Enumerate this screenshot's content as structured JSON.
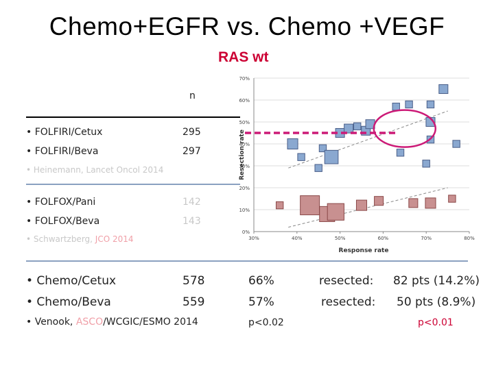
{
  "title": "Chemo+EGFR vs. Chemo +VEGF",
  "subtitle": "RAS wt",
  "table": {
    "n_header": "n",
    "group1": [
      {
        "label": "• FOLFIRI/Cetux",
        "n": "295"
      },
      {
        "label": "• FOLFIRI/Beva",
        "n": "297"
      }
    ],
    "citation1": "• Heinemann, Lancet Oncol 2014",
    "group2": [
      {
        "label": "• FOLFOX/Pani",
        "n": "142"
      },
      {
        "label": "• FOLFOX/Beva",
        "n": "143"
      }
    ],
    "citation2_prefix": "• Schwartzberg, ",
    "citation2_suffix": "JCO 2014",
    "group3": [
      {
        "label": "• Chemo/Cetux",
        "n": "578",
        "rr": "66%",
        "resected": "resected:",
        "pts": "82 pts (14.2%)"
      },
      {
        "label": "• Chemo/Beva",
        "n": "559",
        "rr": "57%",
        "resected": "resected:",
        "pts": "50 pts (8.9%)"
      }
    ],
    "citation3_prefix": "• Venook, ",
    "citation3_mid": "ASCO",
    "citation3_suffix": "/WCGIC/ESMO 2014",
    "p_rr": "p<0.02",
    "p_resection": "p<0.01"
  },
  "chart_data": {
    "type": "scatter",
    "title": "",
    "xlabel": "Response rate",
    "ylabel": "Resection rate",
    "xlim": [
      30,
      80
    ],
    "ylim": [
      0,
      70
    ],
    "x_ticks": [
      "30%",
      "40%",
      "50%",
      "60%",
      "70%",
      "80%"
    ],
    "y_ticks": [
      "0%",
      "10%",
      "20%",
      "30%",
      "40%",
      "50%",
      "60%",
      "70%"
    ],
    "series": [
      {
        "name": "upper cluster (blue)",
        "color": "#8aa8d0",
        "points": [
          {
            "x": 39,
            "y": 40,
            "size": 3
          },
          {
            "x": 46,
            "y": 38,
            "size": 1
          },
          {
            "x": 48,
            "y": 34,
            "size": 6
          },
          {
            "x": 50,
            "y": 45,
            "size": 2
          },
          {
            "x": 52,
            "y": 47,
            "size": 2
          },
          {
            "x": 54,
            "y": 48,
            "size": 1
          },
          {
            "x": 56,
            "y": 46,
            "size": 2
          },
          {
            "x": 57,
            "y": 49,
            "size": 2
          },
          {
            "x": 63,
            "y": 57,
            "size": 1
          },
          {
            "x": 66,
            "y": 58,
            "size": 1
          },
          {
            "x": 64,
            "y": 36,
            "size": 1
          },
          {
            "x": 71,
            "y": 42,
            "size": 1
          },
          {
            "x": 71,
            "y": 50,
            "size": 2
          },
          {
            "x": 71,
            "y": 58,
            "size": 1
          },
          {
            "x": 74,
            "y": 65,
            "size": 2
          },
          {
            "x": 77,
            "y": 40,
            "size": 1
          },
          {
            "x": 41,
            "y": 34,
            "size": 1
          },
          {
            "x": 45,
            "y": 29,
            "size": 1
          },
          {
            "x": 70,
            "y": 31,
            "size": 1
          }
        ]
      },
      {
        "name": "lower cluster (red)",
        "color": "#c89090",
        "points": [
          {
            "x": 36,
            "y": 12,
            "size": 1
          },
          {
            "x": 43,
            "y": 12,
            "size": 14
          },
          {
            "x": 47,
            "y": 8,
            "size": 8
          },
          {
            "x": 49,
            "y": 9,
            "size": 10
          },
          {
            "x": 55,
            "y": 12,
            "size": 3
          },
          {
            "x": 59,
            "y": 14,
            "size": 2
          },
          {
            "x": 67,
            "y": 13,
            "size": 2
          },
          {
            "x": 71,
            "y": 13,
            "size": 3
          },
          {
            "x": 76,
            "y": 15,
            "size": 1
          }
        ]
      }
    ],
    "trend_lines": [
      {
        "x1": 38,
        "y1": 29,
        "x2": 75,
        "y2": 55,
        "style": "dashed"
      },
      {
        "x1": 38,
        "y1": 2,
        "x2": 75,
        "y2": 20,
        "style": "dashed"
      }
    ],
    "highlight_line_y": 45,
    "highlight_circle": {
      "x": 65,
      "y": 47
    },
    "highlight_color": "#cc1a77"
  }
}
